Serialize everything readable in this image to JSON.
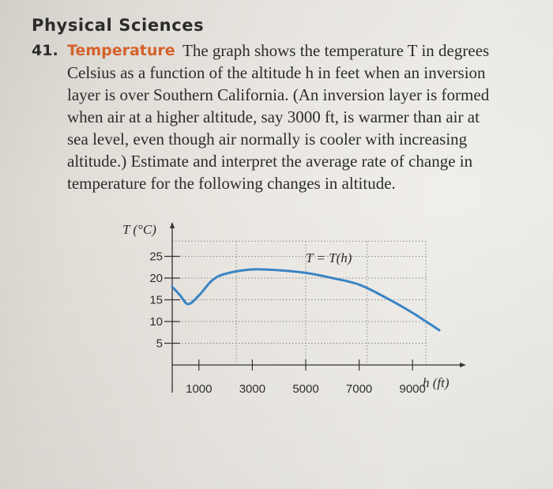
{
  "section": {
    "heading": "Physical Sciences"
  },
  "problem": {
    "number": "41.",
    "topic": "Temperature",
    "lines": [
      "The graph shows the temperature T in degrees",
      "Celsius as a function of the altitude h in feet when an inversion",
      "layer is over Southern California. (An inversion layer is formed",
      "when air at a higher altitude, say 3000 ft, is warmer than air at",
      "sea level, even though air normally is cooler with increasing",
      "altitude.) Estimate and interpret the average rate of change in",
      "temperature for the following changes in altitude."
    ]
  },
  "graph": {
    "y_axis_label": "T (°C)",
    "x_axis_label": "h (ft)",
    "curve_label": "T = T(h)",
    "curve_color": "#3a84c4",
    "y_ticks": [
      "25",
      "20",
      "15",
      "10",
      "5"
    ],
    "x_ticks": [
      "1000",
      "3000",
      "5000",
      "7000",
      "9000"
    ]
  },
  "chart_data": {
    "type": "line",
    "title": "",
    "xlabel": "h (ft)",
    "ylabel": "T (°C)",
    "series": [
      {
        "name": "T = T(h)",
        "x": [
          0,
          300,
          600,
          1000,
          1500,
          2000,
          3000,
          4000,
          5000,
          6000,
          7000,
          8000,
          9000,
          10000
        ],
        "values": [
          18,
          16,
          14,
          16,
          19.5,
          21,
          22,
          21.8,
          21.2,
          20,
          18.5,
          15.5,
          12,
          8
        ]
      }
    ],
    "xlim": [
      0,
      10500
    ],
    "ylim": [
      0,
      30
    ],
    "grid": true
  }
}
